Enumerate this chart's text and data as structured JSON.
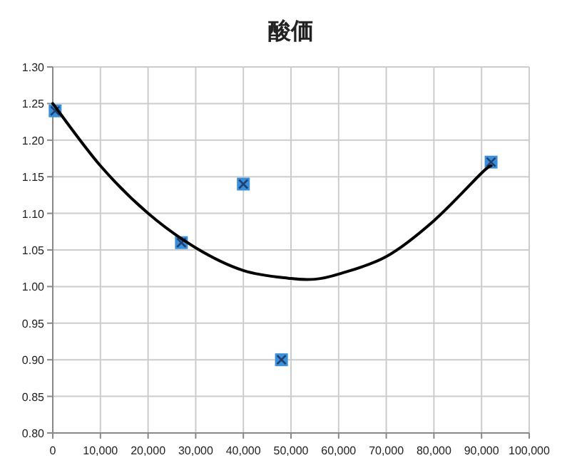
{
  "chart_data": {
    "type": "scatter",
    "title": "酸価",
    "series": [
      {
        "color": "#3a8fd8",
        "marker": "square",
        "x": [
          500,
          27000,
          40000,
          48000,
          92000
        ],
        "values": [
          1.24,
          1.06,
          1.14,
          0.9,
          1.17
        ]
      },
      {
        "type": "line",
        "color": "#000000",
        "marker": "none",
        "line_style": "solid",
        "x": [
          0,
          10000,
          20000,
          30000,
          40000,
          50000,
          55000,
          60000,
          70000,
          80000,
          90000,
          92000
        ],
        "values": [
          1.25,
          1.165,
          1.1,
          1.053,
          1.022,
          1.011,
          1.01,
          1.017,
          1.041,
          1.09,
          1.155,
          1.165
        ]
      }
    ],
    "xlim": [
      0,
      100000
    ],
    "xticks": [
      {
        "value": 0,
        "label": "0"
      },
      {
        "value": 10000,
        "label": "10,000"
      },
      {
        "value": 20000,
        "label": "20,000"
      },
      {
        "value": 30000,
        "label": "30,000"
      },
      {
        "value": 40000,
        "label": "40,000"
      },
      {
        "value": 50000,
        "label": "50,000"
      },
      {
        "value": 60000,
        "label": "60,000"
      },
      {
        "value": 70000,
        "label": "70,000"
      },
      {
        "value": 80000,
        "label": "80,000"
      },
      {
        "value": 90000,
        "label": "90,000"
      },
      {
        "value": 100000,
        "label": "100,000"
      }
    ],
    "ylim": [
      0.8,
      1.3
    ],
    "yticks": [
      {
        "value": 0.8,
        "label": "0.80"
      },
      {
        "value": 0.85,
        "label": "0.85"
      },
      {
        "value": 0.9,
        "label": "0.90"
      },
      {
        "value": 0.95,
        "label": "0.95"
      },
      {
        "value": 1.0,
        "label": "1.00"
      },
      {
        "value": 1.05,
        "label": "1.05"
      },
      {
        "value": 1.1,
        "label": "1.10"
      },
      {
        "value": 1.15,
        "label": "1.15"
      },
      {
        "value": 1.2,
        "label": "1.20"
      },
      {
        "value": 1.25,
        "label": "1.25"
      },
      {
        "value": 1.3,
        "label": "1.30"
      }
    ],
    "grid": true
  }
}
